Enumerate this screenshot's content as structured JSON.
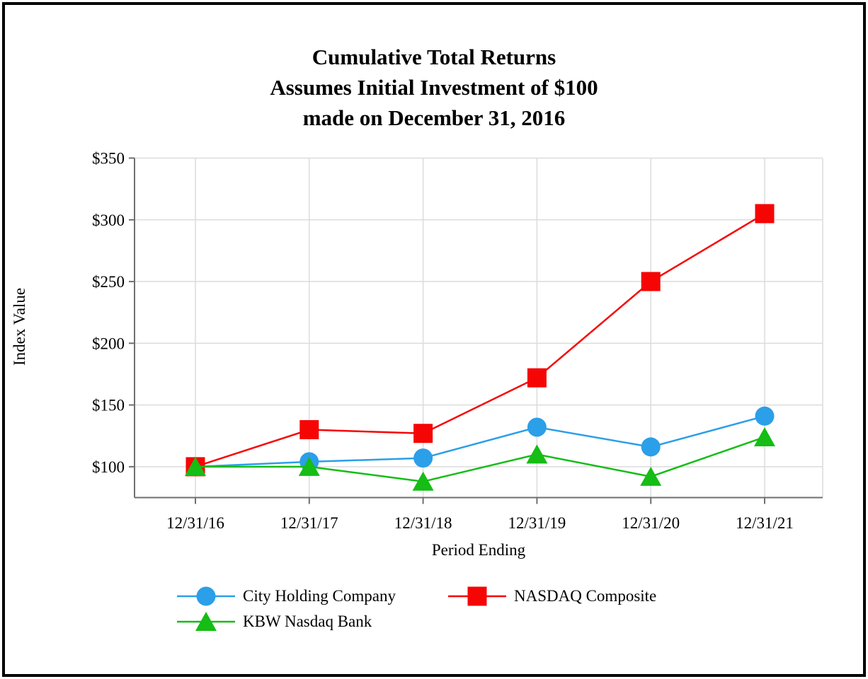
{
  "chart_data": {
    "type": "line",
    "title_lines": [
      "Cumulative Total Returns",
      "Assumes Initial Investment of $100",
      "made on December 31, 2016"
    ],
    "xlabel": "Period Ending",
    "ylabel": "Index Value",
    "categories": [
      "12/31/16",
      "12/31/17",
      "12/31/18",
      "12/31/19",
      "12/31/20",
      "12/31/21"
    ],
    "series": [
      {
        "name": "City Holding Company",
        "marker": "circle",
        "color": "#2B9FE8",
        "values": [
          100,
          104,
          107,
          132,
          116,
          141
        ]
      },
      {
        "name": "NASDAQ Composite",
        "marker": "square",
        "color": "#F60505",
        "values": [
          100,
          130,
          127,
          172,
          250,
          305
        ]
      },
      {
        "name": "KBW Nasdaq Bank",
        "marker": "triangle",
        "color": "#15BD15",
        "values": [
          100,
          100,
          88,
          110,
          92,
          124
        ]
      }
    ],
    "ylim": [
      75,
      350
    ],
    "yticks": [
      100,
      150,
      200,
      250,
      300,
      350
    ],
    "ytick_labels": [
      "$100",
      "$150",
      "$200",
      "$250",
      "$300",
      "$350"
    ],
    "grid": true,
    "legend_position": "bottom"
  },
  "colors": {
    "background": "#FFFFFF",
    "frame": "#000000",
    "gridline": "#DCDCDC",
    "axis": "#6F6F6F",
    "text": "#000000"
  }
}
